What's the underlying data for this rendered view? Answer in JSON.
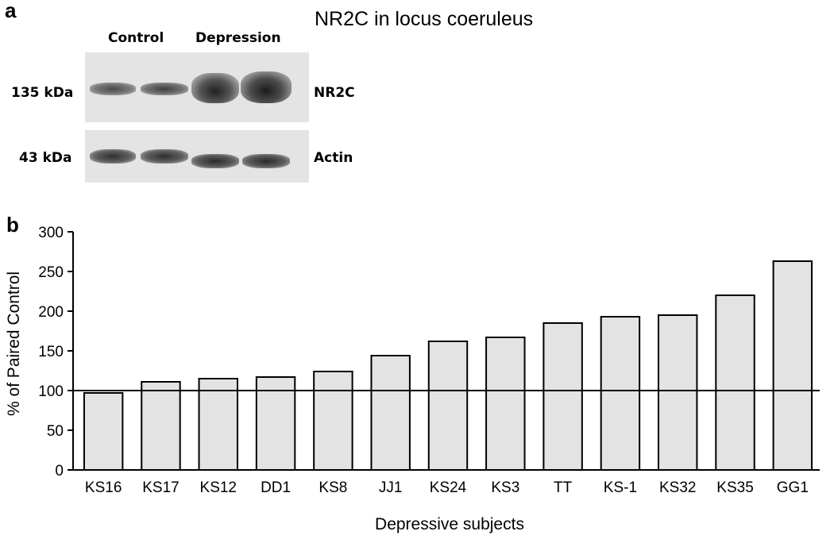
{
  "panel_a": {
    "letter": "a",
    "title": "NR2C in locus coeruleus",
    "lane_groups": [
      "Control",
      "Depression"
    ],
    "markers": [
      "135 kDa",
      "43 kDa"
    ],
    "proteins": [
      "NR2C",
      "Actin"
    ]
  },
  "panel_b": {
    "letter": "b"
  },
  "chart_data": {
    "type": "bar",
    "title": "",
    "xlabel": "Depressive subjects",
    "ylabel": "% of Paired Control",
    "ylim": [
      0,
      300
    ],
    "yticks": [
      0,
      50,
      100,
      150,
      200,
      250,
      300
    ],
    "categories": [
      "KS16",
      "KS17",
      "KS12",
      "DD1",
      "KS8",
      "JJ1",
      "KS24",
      "KS3",
      "TT",
      "KS-1",
      "KS32",
      "KS35",
      "GG1"
    ],
    "values": [
      97,
      111,
      115,
      117,
      124,
      144,
      162,
      167,
      185,
      193,
      195,
      220,
      263
    ],
    "reference_line": 100,
    "bar_color": "#e3e3e3",
    "grid": false
  }
}
